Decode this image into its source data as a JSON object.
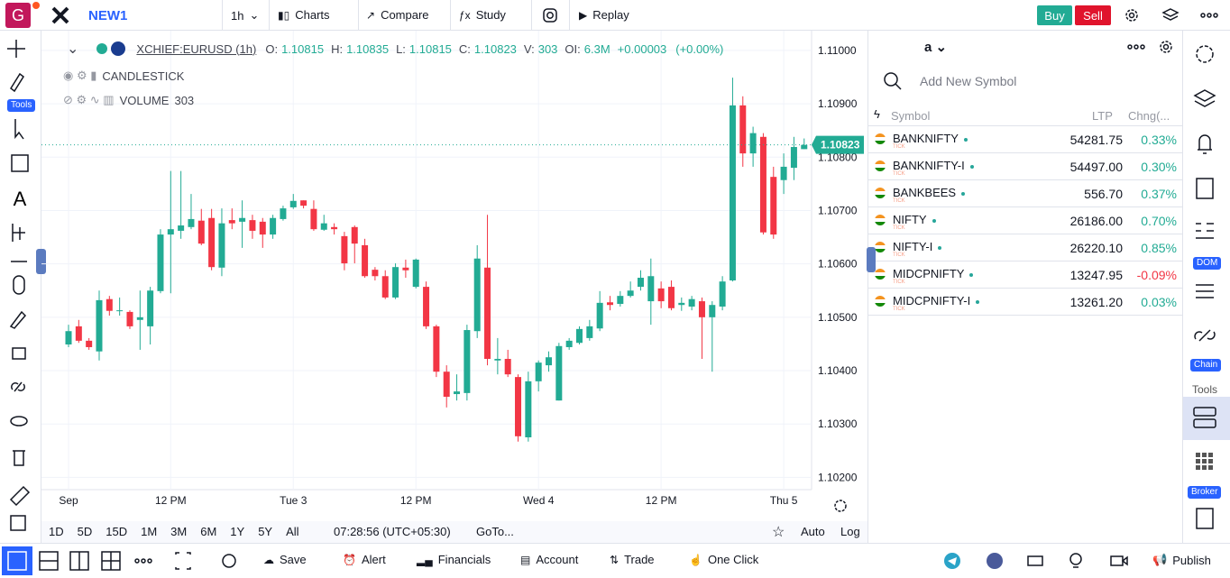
{
  "chart_data": {
    "type": "candlestick",
    "categories": [
      "Sep",
      null,
      null,
      null,
      null,
      null,
      null,
      null,
      null,
      null,
      "12 PM",
      null,
      null,
      null,
      null,
      null,
      null,
      null,
      null,
      null,
      null,
      null,
      "Tue 3",
      null,
      null,
      null,
      null,
      null,
      null,
      null,
      null,
      null,
      null,
      null,
      "12 PM",
      null,
      null,
      null,
      null,
      null,
      null,
      null,
      null,
      null,
      null,
      null,
      "Wed 4",
      null,
      null,
      null,
      null,
      null,
      null,
      null,
      null,
      null,
      null,
      null,
      "12 PM",
      null,
      null,
      null,
      null,
      null,
      null,
      null,
      null,
      null,
      null,
      null,
      "Thu 5",
      null,
      null
    ],
    "open": [
      1.10449,
      1.10483,
      1.10456,
      1.10436,
      1.10534,
      1.10512,
      1.1051,
      1.10495,
      1.10483,
      1.10549,
      1.10655,
      1.10662,
      1.10669,
      1.10681,
      1.10686,
      1.10593,
      1.10682,
      1.10679,
      1.10682,
      1.10679,
      1.10655,
      1.10684,
      1.10706,
      1.10719,
      1.10703,
      1.10664,
      1.10669,
      1.10652,
      1.10669,
      1.10635,
      1.10589,
      1.10577,
      1.10537,
      1.10593,
      1.10557,
      1.10557,
      1.10483,
      1.10398,
      1.10356,
      1.10358,
      1.10474,
      1.10593,
      1.10419,
      1.10422,
      1.10388,
      1.10275,
      1.1038,
      1.1041,
      1.10344,
      1.10444,
      1.10452,
      1.10461,
      1.10479,
      1.10528,
      1.10525,
      1.1054,
      1.10557,
      1.1053,
      1.10554,
      1.10557,
      1.10523,
      1.1052,
      1.1053,
      1.105,
      1.1052,
      1.10569,
      1.10897,
      1.10807,
      1.10838,
      1.10763,
      1.10757,
      1.1078,
      1.10815
    ],
    "high": [
      1.10486,
      1.10495,
      1.10461,
      1.1055,
      1.1054,
      1.10537,
      1.10513,
      1.1055,
      1.10557,
      1.10665,
      1.10774,
      1.10774,
      1.10731,
      1.10703,
      1.10703,
      1.10704,
      1.10704,
      1.10719,
      1.10692,
      1.10686,
      1.10692,
      1.10709,
      1.10731,
      1.10719,
      1.10719,
      1.10692,
      1.10676,
      1.1066,
      1.10672,
      1.10647,
      1.10594,
      1.10588,
      1.10601,
      1.10608,
      1.1061,
      1.10567,
      1.10486,
      1.1041,
      1.10393,
      1.10486,
      1.10635,
      1.10692,
      1.10461,
      1.10439,
      1.10393,
      1.10398,
      1.10419,
      1.10436,
      1.10452,
      1.10461,
      1.10483,
      1.10495,
      1.10549,
      1.1054,
      1.10549,
      1.10567,
      1.10588,
      1.1061,
      1.10567,
      1.10569,
      1.10537,
      1.1054,
      1.10537,
      1.1053,
      1.10577,
      1.10949,
      1.10914,
      1.10857,
      1.10845,
      1.10782,
      1.10807,
      1.10838,
      1.10835
    ],
    "low": [
      1.10444,
      1.10452,
      1.10439,
      1.10419,
      1.10503,
      1.10503,
      1.10478,
      1.10439,
      1.10449,
      1.10545,
      1.10545,
      1.10647,
      1.10665,
      1.10635,
      1.10588,
      1.10577,
      1.10665,
      1.1063,
      1.10647,
      1.1063,
      1.10647,
      1.10681,
      1.10703,
      1.10704,
      1.10662,
      1.10662,
      1.10655,
      1.10588,
      1.10601,
      1.10574,
      1.10569,
      1.10534,
      1.10534,
      1.10574,
      1.10554,
      1.10478,
      1.10388,
      1.10331,
      1.10344,
      1.10344,
      1.10461,
      1.1041,
      1.10393,
      1.10388,
      1.10267,
      1.10267,
      1.10361,
      1.10398,
      1.10344,
      1.10439,
      1.10449,
      1.10456,
      1.10474,
      1.10513,
      1.1052,
      1.10537,
      1.1055,
      1.10486,
      1.10517,
      1.10513,
      1.10512,
      1.10513,
      1.10422,
      1.10398,
      1.10513,
      1.10567,
      1.10782,
      1.10782,
      1.10655,
      1.10647,
      1.10731,
      1.10757,
      1.10815
    ],
    "close": [
      1.10474,
      1.10456,
      1.10444,
      1.10532,
      1.10512,
      1.10513,
      1.10483,
      1.105,
      1.1055,
      1.10655,
      1.10665,
      1.10672,
      1.10684,
      1.10638,
      1.10594,
      1.10676,
      1.10676,
      1.10686,
      1.10662,
      1.10655,
      1.10686,
      1.10704,
      1.10718,
      1.10709,
      1.10665,
      1.10676,
      1.10665,
      1.10601,
      1.10638,
      1.10577,
      1.10577,
      1.10537,
      1.10594,
      1.10588,
      1.10608,
      1.10483,
      1.10398,
      1.10351,
      1.10361,
      1.10476,
      1.1061,
      1.10422,
      1.10422,
      1.10393,
      1.10277,
      1.1038,
      1.10415,
      1.10425,
      1.10446,
      1.10456,
      1.10478,
      1.10483,
      1.10527,
      1.10523,
      1.1054,
      1.1055,
      1.10574,
      1.10577,
      1.1053,
      1.10517,
      1.10527,
      1.10534,
      1.105,
      1.10523,
      1.10567,
      1.10897,
      1.10807,
      1.10845,
      1.10659,
      1.10655,
      1.10782,
      1.10819,
      1.10823
    ],
    "up_color": "#22ab94",
    "down_color": "#f23645",
    "ylim": [
      1.10177,
      1.11037
    ],
    "yticks": [
      {
        "value": 1.11,
        "label": "1.11000"
      },
      {
        "value": 1.109,
        "label": "1.10900"
      },
      {
        "value": 1.108,
        "label": "1.10800"
      },
      {
        "value": 1.107,
        "label": "1.10700"
      },
      {
        "value": 1.106,
        "label": "1.10600"
      },
      {
        "value": 1.105,
        "label": "1.10500"
      },
      {
        "value": 1.104,
        "label": "1.10400"
      },
      {
        "value": 1.103,
        "label": "1.10300"
      },
      {
        "value": 1.102,
        "label": "1.10200"
      }
    ],
    "grid": true,
    "price_tag": {
      "value": 1.10823,
      "label": "1.10823"
    }
  },
  "top_bar": {
    "logo": "G",
    "layout_name": "NEW1",
    "interval": "1h",
    "buttons": [
      "Charts",
      "Compare",
      "Study",
      "Replay"
    ],
    "buy": "Buy",
    "sell": "Sell"
  },
  "left_toolbar": {
    "badge": "Tools"
  },
  "legend": {
    "symbol": "XCHIEF:EURUSD (1h)",
    "fields": [
      {
        "label": "O:",
        "value": "1.10815"
      },
      {
        "label": "H:",
        "value": "1.10835"
      },
      {
        "label": "L:",
        "value": "1.10815"
      },
      {
        "label": "C:",
        "value": "1.10823"
      },
      {
        "label": "V:",
        "value": "303"
      },
      {
        "label": "OI:",
        "value": "6.3M"
      }
    ],
    "change": "+0.00003",
    "change_pct": "(+0.00%)",
    "studies": [
      {
        "name": "CANDLESTICK"
      },
      {
        "name": "VOLUME",
        "value": "303"
      }
    ]
  },
  "range_bar": {
    "ranges": [
      "1D",
      "5D",
      "15D",
      "1M",
      "3M",
      "6M",
      "1Y",
      "5Y",
      "All"
    ],
    "clock": "07:28:56 (UTC+05:30)",
    "goto": "GoTo...",
    "auto": "Auto",
    "log": "Log"
  },
  "bottom_bar": {
    "buttons": [
      "Save",
      "Alert",
      "Financials",
      "Account",
      "Trade",
      "One Click"
    ],
    "publish": "Publish"
  },
  "watchlist": {
    "tab": "a",
    "search": "Add New Symbol",
    "headers": [
      "Symbol",
      "LTP",
      "Chng(..."
    ],
    "rows": [
      {
        "symbol": "BANKNIFTY",
        "tag": "TICK",
        "ltp": "54281.75",
        "chg": "0.33%"
      },
      {
        "symbol": "BANKNIFTY-I",
        "tag": "TICK",
        "ltp": "54497.00",
        "chg": "0.30%"
      },
      {
        "symbol": "BANKBEES",
        "tag": "TICK",
        "ltp": "556.70",
        "chg": "0.37%"
      },
      {
        "symbol": "NIFTY",
        "tag": "TICK",
        "ltp": "26186.00",
        "chg": "0.70%"
      },
      {
        "symbol": "NIFTY-I",
        "tag": "TICK",
        "ltp": "26220.10",
        "chg": "0.85%"
      },
      {
        "symbol": "MIDCPNIFTY",
        "tag": "TICK",
        "ltp": "13247.95",
        "chg": "-0.09%"
      },
      {
        "symbol": "MIDCPNIFTY-I",
        "tag": "TICK",
        "ltp": "13261.20",
        "chg": "0.03%"
      }
    ]
  },
  "right_sidebar": {
    "dom": "DOM",
    "chain": "Chain",
    "tools": "Tools",
    "broker": "Broker"
  }
}
